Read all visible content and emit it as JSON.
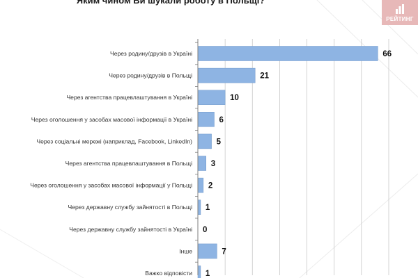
{
  "colors": {
    "bar": "#8eb4e3",
    "bar_stroke": "#6f97c9",
    "axis": "#7f7f7f",
    "grid": "#c8c8c8",
    "logo_bg": "#e7b8b8"
  },
  "logo": {
    "text": "РЕЙТИНГ",
    "icon": "rating-logo-icon"
  },
  "chart_data": {
    "type": "bar",
    "orientation": "horizontal",
    "title": "Яким чином Ви шукали роботу в Польщі?",
    "xlabel": "",
    "ylabel": "",
    "xlim": [
      0,
      70
    ],
    "grid": true,
    "categories": [
      "Через родину/друзів в Україні",
      "Через родину/друзів в Польщі",
      "Через агентства працевлаштування в Україні",
      "Через оголошення у засобах масової інформації в Україні",
      "Через соціальні мережі (наприклад, Facebook, LinkedIn)",
      "Через агентства працевлаштування в Польщі",
      "Через оголошення у засобах масової інформації у Польщі",
      "Через державну службу зайнятості в Польщі",
      "Через державну службу зайнятості в Україні",
      "Інше",
      "Важко відповісти"
    ],
    "values": [
      66,
      21,
      10,
      6,
      5,
      3,
      2,
      1,
      0,
      7,
      1
    ]
  }
}
